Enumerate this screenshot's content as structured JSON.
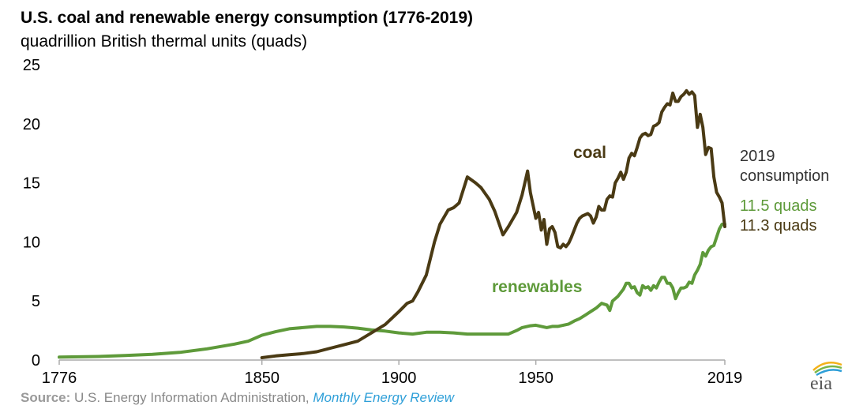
{
  "header": {
    "title": "U.S. coal and renewable energy consumption (1776-2019)",
    "subtitle": "quadrillion British thermal units (quads)"
  },
  "annotation": {
    "heading_line1": "2019",
    "heading_line2": "consumption",
    "renewables_value": "11.5 quads",
    "coal_value": "11.3 quads"
  },
  "source": {
    "label": "Source:",
    "text": " U.S. Energy Information Administration, ",
    "publication": "Monthly Energy Review"
  },
  "logo": {
    "text": "eia"
  },
  "colors": {
    "coal": "#4a3a14",
    "renewables": "#5e9a3a",
    "axis": "#aaaaaa",
    "source_link": "#2e9fd8"
  },
  "chart_data": {
    "type": "line",
    "title": "U.S. coal and renewable energy consumption (1776-2019)",
    "ylabel": "quadrillion British thermal units (quads)",
    "xlim": [
      1776,
      2019
    ],
    "ylim": [
      0,
      25
    ],
    "y_ticks": [
      "0",
      "5",
      "10",
      "15",
      "20",
      "25"
    ],
    "x_ticks": [
      {
        "value": 1776,
        "label": "1776"
      },
      {
        "value": 1850,
        "label": "1850"
      },
      {
        "value": 1900,
        "label": "1900"
      },
      {
        "value": 1950,
        "label": "1950"
      },
      {
        "value": 2019,
        "label": "2019"
      }
    ],
    "grid": false,
    "series": [
      {
        "name": "coal",
        "color": "#4a3a14",
        "points": [
          [
            1850,
            0.2
          ],
          [
            1855,
            0.35
          ],
          [
            1860,
            0.45
          ],
          [
            1865,
            0.55
          ],
          [
            1870,
            0.7
          ],
          [
            1875,
            1.0
          ],
          [
            1880,
            1.3
          ],
          [
            1885,
            1.6
          ],
          [
            1890,
            2.3
          ],
          [
            1895,
            3.0
          ],
          [
            1900,
            4.1
          ],
          [
            1903,
            4.8
          ],
          [
            1905,
            5.0
          ],
          [
            1907,
            5.8
          ],
          [
            1910,
            7.2
          ],
          [
            1913,
            10.0
          ],
          [
            1915,
            11.5
          ],
          [
            1918,
            12.7
          ],
          [
            1920,
            12.9
          ],
          [
            1922,
            13.3
          ],
          [
            1925,
            15.5
          ],
          [
            1928,
            15.0
          ],
          [
            1930,
            14.6
          ],
          [
            1933,
            13.6
          ],
          [
            1935,
            12.6
          ],
          [
            1938,
            10.6
          ],
          [
            1940,
            11.3
          ],
          [
            1943,
            12.5
          ],
          [
            1945,
            14.0
          ],
          [
            1947,
            16.0
          ],
          [
            1948,
            14.2
          ],
          [
            1950,
            12.0
          ],
          [
            1951,
            12.5
          ],
          [
            1952,
            11.0
          ],
          [
            1953,
            11.9
          ],
          [
            1954,
            9.8
          ],
          [
            1955,
            11.1
          ],
          [
            1956,
            11.3
          ],
          [
            1957,
            10.8
          ],
          [
            1958,
            9.6
          ],
          [
            1959,
            9.5
          ],
          [
            1960,
            9.8
          ],
          [
            1961,
            9.6
          ],
          [
            1962,
            9.9
          ],
          [
            1963,
            10.4
          ],
          [
            1965,
            11.6
          ],
          [
            1966,
            12.0
          ],
          [
            1967,
            12.2
          ],
          [
            1968,
            12.3
          ],
          [
            1969,
            12.4
          ],
          [
            1970,
            12.2
          ],
          [
            1971,
            11.6
          ],
          [
            1972,
            12.1
          ],
          [
            1973,
            13.0
          ],
          [
            1974,
            12.7
          ],
          [
            1975,
            12.7
          ],
          [
            1976,
            13.6
          ],
          [
            1977,
            13.9
          ],
          [
            1978,
            13.8
          ],
          [
            1979,
            15.0
          ],
          [
            1980,
            15.4
          ],
          [
            1981,
            15.9
          ],
          [
            1982,
            15.3
          ],
          [
            1983,
            15.9
          ],
          [
            1984,
            17.1
          ],
          [
            1985,
            17.5
          ],
          [
            1986,
            17.3
          ],
          [
            1987,
            18.0
          ],
          [
            1988,
            18.8
          ],
          [
            1989,
            19.1
          ],
          [
            1990,
            19.2
          ],
          [
            1991,
            19.0
          ],
          [
            1992,
            19.1
          ],
          [
            1993,
            19.8
          ],
          [
            1994,
            19.9
          ],
          [
            1995,
            20.1
          ],
          [
            1996,
            21.0
          ],
          [
            1997,
            21.4
          ],
          [
            1998,
            21.7
          ],
          [
            1999,
            21.6
          ],
          [
            2000,
            22.6
          ],
          [
            2001,
            21.9
          ],
          [
            2002,
            21.9
          ],
          [
            2003,
            22.3
          ],
          [
            2004,
            22.5
          ],
          [
            2005,
            22.8
          ],
          [
            2006,
            22.5
          ],
          [
            2007,
            22.7
          ],
          [
            2008,
            22.4
          ],
          [
            2009,
            19.7
          ],
          [
            2010,
            20.8
          ],
          [
            2011,
            19.7
          ],
          [
            2012,
            17.4
          ],
          [
            2013,
            18.0
          ],
          [
            2014,
            17.9
          ],
          [
            2015,
            15.5
          ],
          [
            2016,
            14.2
          ],
          [
            2017,
            13.8
          ],
          [
            2018,
            13.3
          ],
          [
            2019,
            11.3
          ]
        ]
      },
      {
        "name": "renewables",
        "color": "#5e9a3a",
        "points": [
          [
            1776,
            0.25
          ],
          [
            1790,
            0.3
          ],
          [
            1800,
            0.38
          ],
          [
            1810,
            0.48
          ],
          [
            1820,
            0.65
          ],
          [
            1830,
            0.95
          ],
          [
            1840,
            1.35
          ],
          [
            1845,
            1.6
          ],
          [
            1850,
            2.1
          ],
          [
            1855,
            2.4
          ],
          [
            1860,
            2.65
          ],
          [
            1865,
            2.75
          ],
          [
            1870,
            2.85
          ],
          [
            1875,
            2.85
          ],
          [
            1880,
            2.8
          ],
          [
            1885,
            2.7
          ],
          [
            1890,
            2.55
          ],
          [
            1895,
            2.45
          ],
          [
            1900,
            2.3
          ],
          [
            1905,
            2.2
          ],
          [
            1910,
            2.35
          ],
          [
            1915,
            2.35
          ],
          [
            1920,
            2.3
          ],
          [
            1925,
            2.2
          ],
          [
            1930,
            2.2
          ],
          [
            1935,
            2.2
          ],
          [
            1940,
            2.2
          ],
          [
            1943,
            2.5
          ],
          [
            1945,
            2.75
          ],
          [
            1948,
            2.9
          ],
          [
            1950,
            2.95
          ],
          [
            1952,
            2.85
          ],
          [
            1954,
            2.75
          ],
          [
            1956,
            2.85
          ],
          [
            1958,
            2.85
          ],
          [
            1960,
            2.95
          ],
          [
            1962,
            3.05
          ],
          [
            1964,
            3.3
          ],
          [
            1966,
            3.5
          ],
          [
            1968,
            3.8
          ],
          [
            1970,
            4.1
          ],
          [
            1972,
            4.4
          ],
          [
            1974,
            4.8
          ],
          [
            1976,
            4.65
          ],
          [
            1977,
            4.2
          ],
          [
            1978,
            5.0
          ],
          [
            1980,
            5.4
          ],
          [
            1982,
            6.0
          ],
          [
            1983,
            6.5
          ],
          [
            1984,
            6.5
          ],
          [
            1985,
            6.1
          ],
          [
            1986,
            6.2
          ],
          [
            1987,
            5.7
          ],
          [
            1988,
            5.5
          ],
          [
            1989,
            6.3
          ],
          [
            1990,
            6.1
          ],
          [
            1991,
            6.2
          ],
          [
            1992,
            5.9
          ],
          [
            1993,
            6.3
          ],
          [
            1994,
            6.1
          ],
          [
            1995,
            6.6
          ],
          [
            1996,
            7.0
          ],
          [
            1997,
            7.0
          ],
          [
            1998,
            6.5
          ],
          [
            1999,
            6.5
          ],
          [
            2000,
            6.1
          ],
          [
            2001,
            5.2
          ],
          [
            2002,
            5.7
          ],
          [
            2003,
            6.1
          ],
          [
            2004,
            6.1
          ],
          [
            2005,
            6.2
          ],
          [
            2006,
            6.6
          ],
          [
            2007,
            6.5
          ],
          [
            2008,
            7.2
          ],
          [
            2009,
            7.6
          ],
          [
            2010,
            8.1
          ],
          [
            2011,
            9.1
          ],
          [
            2012,
            8.8
          ],
          [
            2013,
            9.3
          ],
          [
            2014,
            9.6
          ],
          [
            2015,
            9.7
          ],
          [
            2016,
            10.4
          ],
          [
            2017,
            11.1
          ],
          [
            2018,
            11.5
          ],
          [
            2019,
            11.5
          ]
        ]
      }
    ],
    "series_labels": {
      "coal": "coal",
      "renewables": "renewables"
    }
  }
}
